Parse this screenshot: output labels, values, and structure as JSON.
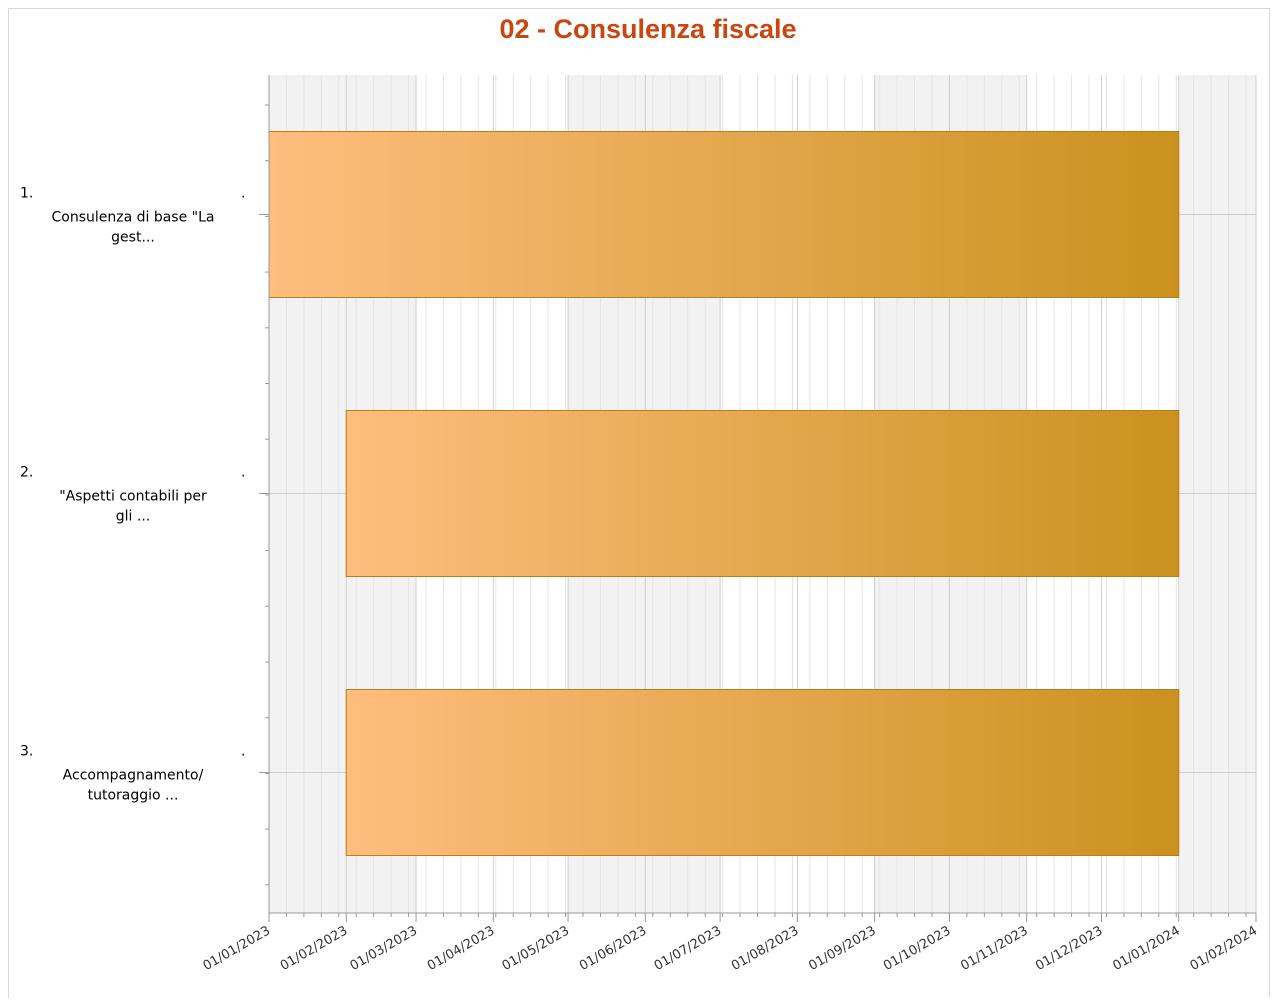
{
  "chart_data": {
    "type": "bar",
    "orientation": "horizontal",
    "title": "02 - Consulenza fiscale",
    "xlabel": "",
    "ylabel": "",
    "categories": [
      {
        "number": "1.",
        "label_lines": [
          "Consulenza di base \"La",
          "gest..."
        ]
      },
      {
        "number": "2.",
        "label_lines": [
          "\"Aspetti contabili per",
          "gli ..."
        ]
      },
      {
        "number": "3.",
        "label_lines": [
          "Accompagnamento/",
          "tutoraggio ..."
        ]
      }
    ],
    "series": [
      {
        "start": [
          "2023-01-01",
          "2023-02-01",
          "2023-02-01"
        ],
        "end": [
          "2024-01-01",
          "2024-01-01",
          "2024-01-01"
        ]
      }
    ],
    "x_ticks": [
      "01/01/2023",
      "01/02/2023",
      "01/03/2023",
      "01/04/2023",
      "01/05/2023",
      "01/06/2023",
      "01/07/2023",
      "01/08/2023",
      "01/09/2023",
      "01/10/2023",
      "01/11/2023",
      "01/12/2023",
      "01/01/2024",
      "01/02/2024"
    ],
    "xlim": [
      "2023-01-01",
      "2024-02-01"
    ],
    "grid": true,
    "legend": "none",
    "colors": {
      "title": "#c8460f",
      "bar_start": "#ffbd7e",
      "bar_end": "#cb911e",
      "bar_border": "#b8801a",
      "band_shaded": "#f2f2f2",
      "grid_major": "#cfcfcf",
      "grid_minor": "#e4e4e4"
    }
  }
}
